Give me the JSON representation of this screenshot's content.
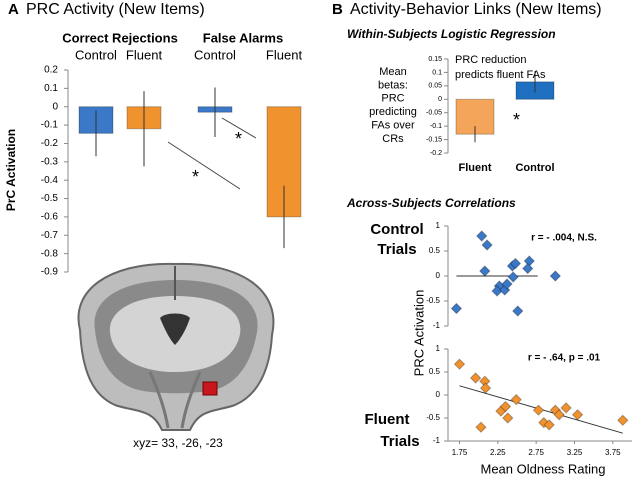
{
  "chart_data": [
    {
      "type": "bar",
      "panel": "A",
      "title": "PRC Activity (New Items)",
      "groups": [
        "Correct Rejections",
        "False Alarms"
      ],
      "categories": [
        "Control",
        "Fluent",
        "Control",
        "Fluent"
      ],
      "values": [
        -0.145,
        -0.12,
        -0.03,
        -0.6
      ],
      "errors": [
        0.125,
        0.205,
        0.135,
        0.17
      ],
      "colors": [
        "#3c78c8",
        "#f0922e",
        "#3c78c8",
        "#f0922e"
      ],
      "ylim": [
        -0.9,
        0.2
      ],
      "yticks": [
        0.2,
        0.1,
        0,
        -0.1,
        -0.2,
        -0.3,
        -0.4,
        -0.5,
        -0.6,
        -0.7,
        -0.8,
        -0.9
      ],
      "ylabel": "PrC Activation",
      "annotations": [
        "*",
        "*"
      ],
      "caption": "xyz= 33, -26, -23"
    },
    {
      "type": "bar",
      "panel": "B",
      "title": "Activity-Behavior Links (New Items)",
      "subtitle": "Within-Subjects Logistic Regression",
      "categories": [
        "Fluent",
        "Control"
      ],
      "values": [
        -0.13,
        0.065
      ],
      "errors": [
        0.03,
        0.04
      ],
      "colors": [
        "#f5a55a",
        "#1f6fc0"
      ],
      "ylim": [
        -0.2,
        0.15
      ],
      "yticks": [
        0.15,
        0.1,
        0.05,
        0,
        -0.05,
        -0.1,
        -0.15,
        -0.2
      ],
      "ylabel": [
        "Mean",
        "betas:",
        "PRC",
        "predicting",
        "FAs over",
        "CRs"
      ],
      "annotations": [
        "PRC  reduction",
        "predicts fluent FAs",
        "*"
      ]
    },
    {
      "type": "scatter",
      "subtitle": "Across-Subjects Correlations",
      "label": [
        "Control",
        "Trials"
      ],
      "color": "#3c78c8",
      "x": [
        1.71,
        2.04,
        2.11,
        2.08,
        2.27,
        2.24,
        2.34,
        2.37,
        2.44,
        2.45,
        2.48,
        2.51,
        2.66,
        2.64,
        3.0
      ],
      "y": [
        -0.65,
        0.8,
        0.62,
        0.1,
        -0.2,
        -0.3,
        -0.28,
        -0.16,
        0.2,
        -0.02,
        0.25,
        -0.7,
        0.3,
        0.15,
        0.0
      ],
      "trendline": {
        "x": [
          1.71,
          2.77
        ],
        "y": [
          0,
          0
        ]
      },
      "xlim": [
        1.6,
        4.0
      ],
      "ylim": [
        -1,
        1
      ],
      "yticks": [
        1,
        0.5,
        0,
        -0.5,
        -1
      ],
      "annotation": "r = - .004, N.S."
    },
    {
      "type": "scatter",
      "label": [
        "Fluent",
        "Trials"
      ],
      "color": "#f0922e",
      "x": [
        1.75,
        1.96,
        2.08,
        2.09,
        2.03,
        2.29,
        2.35,
        2.38,
        2.49,
        2.78,
        2.85,
        2.92,
        3.0,
        3.05,
        3.14,
        3.29,
        3.88
      ],
      "y": [
        0.67,
        0.37,
        0.3,
        0.15,
        -0.7,
        -0.35,
        -0.25,
        -0.5,
        -0.1,
        -0.33,
        -0.6,
        -0.65,
        -0.33,
        -0.43,
        -0.28,
        -0.43,
        -0.55
      ],
      "trendline": {
        "x": [
          1.75,
          3.88
        ],
        "y": [
          0.2,
          -0.83
        ]
      },
      "xlim": [
        1.6,
        4.0
      ],
      "ylim": [
        -1,
        1
      ],
      "yticks": [
        1,
        0.5,
        0,
        -0.5,
        -1
      ],
      "xticks": [
        1.75,
        2.25,
        2.75,
        3.25,
        3.75
      ],
      "annotation": "r = - .64, p = .01",
      "ylabel": "PRC Activation",
      "xlabel": "Mean Oldness Rating"
    }
  ]
}
